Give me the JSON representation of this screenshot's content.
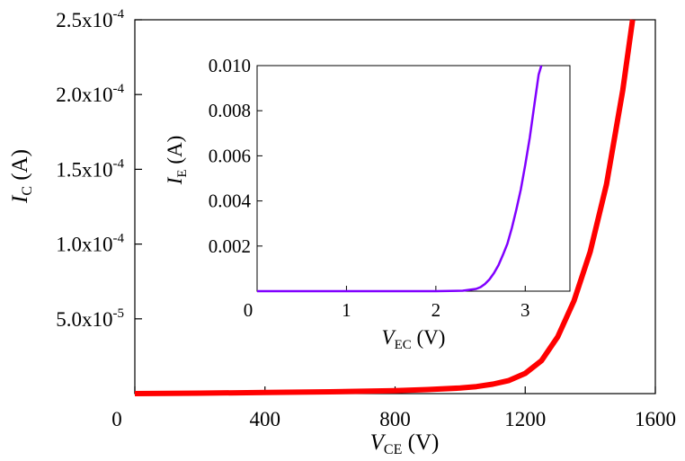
{
  "chart_data": [
    {
      "type": "line",
      "xlabel": {
        "main": "V",
        "sub": "CE",
        "unit": " (V)"
      },
      "ylabel": {
        "main": "I",
        "sub": "C",
        "unit": " (A)"
      },
      "xlim": [
        0,
        1600
      ],
      "ylim": [
        0,
        0.00025
      ],
      "x_ticks": [
        {
          "value": 0,
          "label": "0"
        },
        {
          "value": 400,
          "label": "400"
        },
        {
          "value": 800,
          "label": "800"
        },
        {
          "value": 1200,
          "label": "1200"
        },
        {
          "value": 1600,
          "label": "1600"
        }
      ],
      "y_ticks": [
        {
          "value": 5e-05,
          "mantissa": "5.0x10",
          "exponent": "-5"
        },
        {
          "value": 0.0001,
          "mantissa": "1.0x10",
          "exponent": "-4"
        },
        {
          "value": 0.00015,
          "mantissa": "1.5x10",
          "exponent": "-4"
        },
        {
          "value": 0.0002,
          "mantissa": "2.0x10",
          "exponent": "-4"
        },
        {
          "value": 0.00025,
          "mantissa": "2.5x10",
          "exponent": "-4"
        }
      ],
      "grid": false,
      "series": [
        {
          "color": "#ff0000",
          "x": [
            0,
            200,
            400,
            600,
            800,
            900,
            1000,
            1050,
            1100,
            1150,
            1200,
            1250,
            1300,
            1350,
            1400,
            1450,
            1500,
            1530
          ],
          "y": [
            0,
            3e-07,
            7e-07,
            1.2e-06,
            2e-06,
            2.7e-06,
            3.7e-06,
            4.7e-06,
            6.3e-06,
            8.8e-06,
            1.35e-05,
            2.2e-05,
            3.8e-05,
            6.2e-05,
            9.5e-05,
            0.00014,
            0.000203,
            0.00025
          ]
        }
      ]
    },
    {
      "type": "line",
      "role": "inset",
      "xlabel": {
        "main": "V",
        "sub": "EC",
        "unit": " (V)"
      },
      "ylabel": {
        "main": "I",
        "sub": "E",
        "unit": " (A)"
      },
      "xlim": [
        0,
        3.5
      ],
      "ylim": [
        0,
        0.01
      ],
      "x_ticks": [
        {
          "value": 0,
          "label": "0"
        },
        {
          "value": 1,
          "label": "1"
        },
        {
          "value": 2,
          "label": "2"
        },
        {
          "value": 3,
          "label": "3"
        }
      ],
      "y_ticks": [
        {
          "value": 0.002,
          "label": "0.002"
        },
        {
          "value": 0.004,
          "label": "0.004"
        },
        {
          "value": 0.006,
          "label": "0.006"
        },
        {
          "value": 0.008,
          "label": "0.008"
        },
        {
          "value": 0.01,
          "label": "0.010"
        }
      ],
      "grid": false,
      "series": [
        {
          "color": "#8000ff",
          "x": [
            0,
            1,
            2,
            2.3,
            2.45,
            2.5,
            2.55,
            2.6,
            2.65,
            2.7,
            2.75,
            2.8,
            2.85,
            2.9,
            2.95,
            3.0,
            3.05,
            3.1,
            3.15,
            3.18
          ],
          "y": [
            0,
            0,
            0,
            2e-05,
            0.0001,
            0.00018,
            0.00032,
            0.00052,
            0.0008,
            0.00115,
            0.0016,
            0.0021,
            0.0028,
            0.0036,
            0.0045,
            0.0056,
            0.0068,
            0.0082,
            0.0096,
            0.01
          ]
        }
      ]
    }
  ]
}
